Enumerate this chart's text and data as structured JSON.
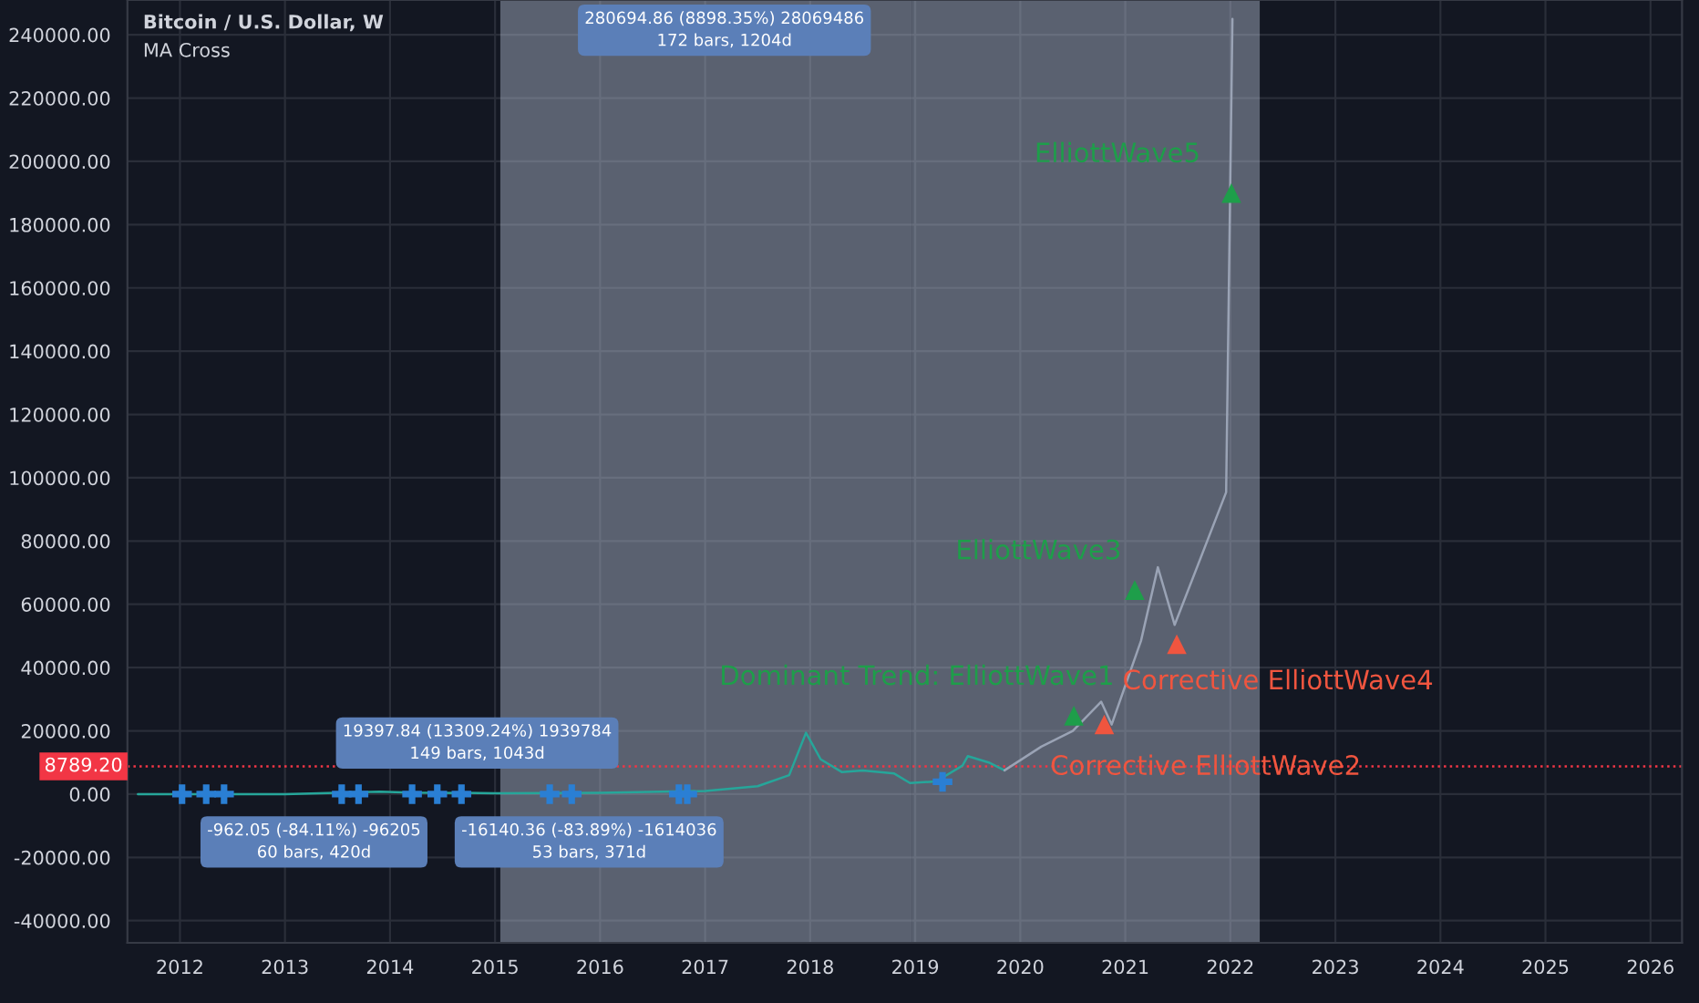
{
  "chart_data": {
    "type": "line",
    "title": "Bitcoin / U.S. Dollar, W",
    "subtitle": "MA Cross",
    "xlim": [
      2011.5,
      2026.3
    ],
    "ylim": [
      -47000,
      251000
    ],
    "xticks": [
      2012,
      2013,
      2014,
      2015,
      2016,
      2017,
      2018,
      2019,
      2020,
      2021,
      2022,
      2023,
      2024,
      2025,
      2026
    ],
    "yticks": [
      {
        "value": -40000,
        "label": "-40000.00"
      },
      {
        "value": -20000,
        "label": "-20000.00"
      },
      {
        "value": 0,
        "label": "0.00"
      },
      {
        "value": 20000,
        "label": "20000.00"
      },
      {
        "value": 40000,
        "label": "40000.00"
      },
      {
        "value": 60000,
        "label": "60000.00"
      },
      {
        "value": 80000,
        "label": "80000.00"
      },
      {
        "value": 100000,
        "label": "100000.00"
      },
      {
        "value": 120000,
        "label": "120000.00"
      },
      {
        "value": 140000,
        "label": "140000.00"
      },
      {
        "value": 160000,
        "label": "160000.00"
      },
      {
        "value": 180000,
        "label": "180000.00"
      },
      {
        "value": 200000,
        "label": "200000.00"
      },
      {
        "value": 220000,
        "label": "220000.00"
      },
      {
        "value": 240000,
        "label": "240000.00"
      }
    ],
    "grid": true,
    "series": [
      {
        "color": "#26a69a",
        "x": [
          2011.6,
          2013.0,
          2013.9,
          2014.2,
          2015.0,
          2016.0,
          2017.0,
          2017.5,
          2017.8,
          2017.96,
          2018.1,
          2018.3,
          2018.5,
          2018.8,
          2018.95,
          2019.2,
          2019.45,
          2019.5,
          2019.7,
          2019.85
        ],
        "values": [
          0,
          0,
          800,
          500,
          300,
          400,
          1000,
          2500,
          6000,
          19400,
          11000,
          7000,
          7500,
          6500,
          3500,
          4000,
          9000,
          12000,
          10000,
          7500
        ]
      },
      {
        "color": "#9aa3b5",
        "x": [
          2019.85,
          2020.2,
          2020.5,
          2020.77,
          2020.87,
          2021.15,
          2021.31,
          2021.47,
          2021.96,
          2022.02
        ],
        "values": [
          7500,
          15000,
          20000,
          29200,
          22000,
          48500,
          71700,
          53500,
          95400,
          245000
        ]
      },
      {
        "type": "scatter",
        "marker": "cross",
        "color": "#2a7fd4",
        "x": [
          2012.02,
          2012.25,
          2012.42,
          2013.54,
          2013.7,
          2014.21,
          2014.45,
          2014.68,
          2015.52,
          2015.73,
          2016.75,
          2016.83,
          2019.26
        ],
        "values": [
          0,
          0,
          0,
          0,
          0,
          0,
          0,
          0,
          0,
          0,
          0,
          0,
          3900
        ]
      },
      {
        "type": "scatter",
        "marker": "triangle",
        "name": "Dominant Trend: ElliottWave1",
        "color": "#1e9e4a",
        "x": [
          2020.51
        ],
        "values": [
          24800
        ]
      },
      {
        "type": "scatter",
        "marker": "triangle",
        "name": "Corrective ElliottWave2",
        "color": "#f0553f",
        "x": [
          2020.8
        ],
        "values": [
          22000
        ]
      },
      {
        "type": "scatter",
        "marker": "triangle",
        "name": "ElliottWave3",
        "color": "#1e9e4a",
        "x": [
          2021.09
        ],
        "values": [
          64500
        ]
      },
      {
        "type": "scatter",
        "marker": "triangle",
        "name": "Corrective ElliottWave4",
        "color": "#f0553f",
        "x": [
          2021.49
        ],
        "values": [
          47400
        ]
      },
      {
        "type": "scatter",
        "marker": "triangle",
        "name": "ElliottWave5",
        "color": "#1e9e4a",
        "x": [
          2022.01
        ],
        "values": [
          190000
        ]
      }
    ],
    "ref_lines": [
      {
        "axis": "y",
        "value": 8789.2,
        "label": "8789.20",
        "color": "#f23645",
        "line_style": "dotted"
      }
    ],
    "bands": [
      {
        "axis": "x",
        "from": 2015.05,
        "to": 2018.97,
        "color": "#b2bcd0"
      },
      {
        "axis": "x",
        "from": 2018.97,
        "to": 2022.28,
        "color": "#b2bcd0"
      }
    ],
    "annotations": [
      "19397.84 (13309.24%) 1939784\n149 bars, 1043d",
      "-962.05 (-84.11%) -96205\n60 bars, 420d",
      "-16140.36 (-83.89%) -1614036\n53 bars, 371d",
      "280694.86 (8898.35%) 28069486\n172 bars, 1204d"
    ]
  }
}
